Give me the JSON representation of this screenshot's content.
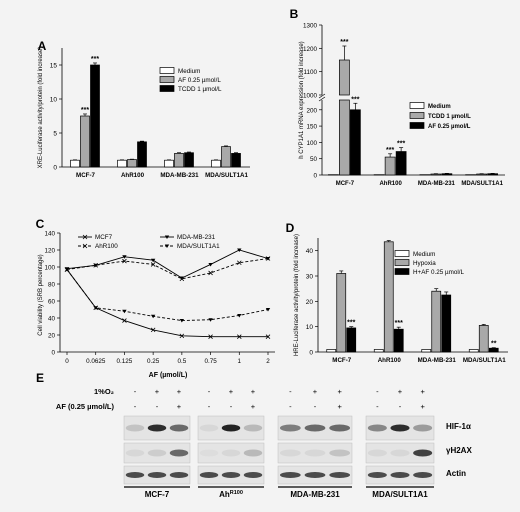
{
  "chart_data": [
    {
      "panel": "A",
      "type": "bar",
      "ylabel": "XRE-Luciferase activity/protein (fold increase)",
      "ylim": [
        0,
        17.5
      ],
      "yticks": [
        0,
        5,
        10,
        15
      ],
      "categories": [
        "MCF-7",
        "AhR100",
        "MDA-MB-231",
        "MDA/SULT1A1"
      ],
      "series": [
        {
          "name": "Medium",
          "color": "#ffffff",
          "values": [
            1,
            1,
            1,
            1
          ],
          "err": [
            0.05,
            0.05,
            0.05,
            0.05
          ]
        },
        {
          "name": "AF 0.25 µmol/L",
          "color": "#a9a9a9",
          "values": [
            7.5,
            1.1,
            2.0,
            3.0
          ],
          "err": [
            0.3,
            0.05,
            0.1,
            0.1
          ]
        },
        {
          "name": "TCDD 1 µmol/L",
          "color": "#000000",
          "values": [
            15.0,
            3.7,
            2.1,
            2.0
          ],
          "err": [
            0.3,
            0.1,
            0.1,
            0.1
          ]
        }
      ],
      "annotations": [
        {
          "category": "MCF-7",
          "series": 1,
          "text": "***"
        },
        {
          "category": "MCF-7",
          "series": 2,
          "text": "***"
        }
      ]
    },
    {
      "panel": "B",
      "type": "bar",
      "ylabel": "h CYP1A1 mRNA expression (fold increase)",
      "ylim": [
        0,
        1300
      ],
      "broken_axis": true,
      "yticks_upper": [
        1000,
        1100,
        1200,
        1300
      ],
      "yticks_lower": [
        0,
        50,
        100,
        150,
        200
      ],
      "categories": [
        "MCF-7",
        "AhR100",
        "MDA-MB-231",
        "MDA/SULT1A1"
      ],
      "series": [
        {
          "name": "Medium",
          "color": "#ffffff",
          "values": [
            1,
            1,
            1,
            1
          ]
        },
        {
          "name": "TCDD 1 µmol/L",
          "color": "#a9a9a9",
          "values": [
            1150,
            55,
            3,
            3
          ],
          "err": [
            60,
            10,
            1,
            1
          ]
        },
        {
          "name": "AF 0.25 µmol/L",
          "color": "#000000",
          "values": [
            200,
            72,
            4,
            4
          ],
          "err": [
            20,
            12,
            1,
            1
          ]
        }
      ],
      "annotations": [
        {
          "category": "MCF-7",
          "series": 1,
          "text": "***"
        },
        {
          "category": "MCF-7",
          "series": 2,
          "text": "***"
        },
        {
          "category": "AhR100",
          "series": 1,
          "text": "***"
        },
        {
          "category": "AhR100",
          "series": 2,
          "text": "***"
        }
      ]
    },
    {
      "panel": "C",
      "type": "line",
      "ylabel": "Cell viability (SRB percentage)",
      "xlabel": "AF (µmol/L)",
      "x": [
        "0",
        "0.0625",
        "0.125",
        "0.25",
        "0.5",
        "0.75",
        "1",
        "2"
      ],
      "ylim": [
        0,
        140
      ],
      "yticks": [
        0,
        20,
        40,
        60,
        80,
        100,
        120,
        140
      ],
      "series": [
        {
          "name": "MCF7",
          "style": "solid",
          "values": [
            97,
            52,
            37,
            26,
            19,
            18,
            18,
            18
          ]
        },
        {
          "name": "AhR100",
          "style": "dashed",
          "values": [
            97,
            102,
            107,
            103,
            86,
            93,
            105,
            110
          ]
        },
        {
          "name": "MDA-MB-231",
          "style": "solid",
          "values": [
            98,
            102,
            112,
            108,
            87,
            103,
            120,
            110
          ]
        },
        {
          "name": "MDA/SULT1A1",
          "style": "dashed",
          "values": [
            97,
            52,
            48,
            42,
            37,
            38,
            43,
            50
          ]
        }
      ]
    },
    {
      "panel": "D",
      "type": "bar",
      "ylabel": "HRE-Luciferase activity/protein (fold increase)",
      "ylim": [
        0,
        45
      ],
      "yticks": [
        0,
        10,
        20,
        30,
        40
      ],
      "categories": [
        "MCF-7",
        "AhR100",
        "MDA-MB-231",
        "MDA/SULT1A1"
      ],
      "series": [
        {
          "name": "Medium",
          "color": "#ffffff",
          "values": [
            1,
            1,
            1,
            1
          ]
        },
        {
          "name": "Hypoxia",
          "color": "#a9a9a9",
          "values": [
            31,
            43.5,
            24,
            10.5
          ],
          "err": [
            1,
            0.5,
            1,
            0.4
          ]
        },
        {
          "name": "H+AF 0.25 µmol/L",
          "color": "#000000",
          "values": [
            9.5,
            9.0,
            22.5,
            1.5
          ],
          "err": [
            0.5,
            0.8,
            1.2,
            0.2
          ]
        }
      ],
      "annotations": [
        {
          "category": "MCF-7",
          "series": 2,
          "text": "***"
        },
        {
          "category": "AhR100",
          "series": 2,
          "text": "***"
        },
        {
          "category": "MDA/SULT1A1",
          "series": 2,
          "text": "**"
        }
      ]
    }
  ],
  "panel_E": {
    "panel": "E",
    "row_labels": [
      "1%O₂",
      "AF (0.25 µmol/L)"
    ],
    "lanes_o2": [
      "-",
      "+",
      "+",
      "-",
      "+",
      "+",
      "-",
      "+",
      "+",
      "-",
      "+",
      "+"
    ],
    "lanes_af": [
      "-",
      "-",
      "+",
      "-",
      "-",
      "+",
      "-",
      "-",
      "+",
      "-",
      "-",
      "+"
    ],
    "band_labels": [
      "HIF-1α",
      "γH2AX",
      "Actin"
    ],
    "groups": [
      "MCF-7",
      "AhR100",
      "MDA-MB-231",
      "MDA/SULT1A1"
    ],
    "group_display": [
      {
        "main": "MCF-7",
        "sup": ""
      },
      {
        "main": "Ah",
        "sup": "R100"
      },
      {
        "main": "MDA-MB-231",
        "sup": ""
      },
      {
        "main": "MDA/SULT1A1",
        "sup": ""
      }
    ],
    "hif_intensity": [
      0.15,
      0.9,
      0.6,
      0.05,
      0.95,
      0.2,
      0.5,
      0.6,
      0.6,
      0.45,
      0.9,
      0.35
    ],
    "h2ax_intensity": [
      0.05,
      0.1,
      0.6,
      0.02,
      0.05,
      0.2,
      0.05,
      0.05,
      0.15,
      0.05,
      0.05,
      0.8
    ]
  }
}
